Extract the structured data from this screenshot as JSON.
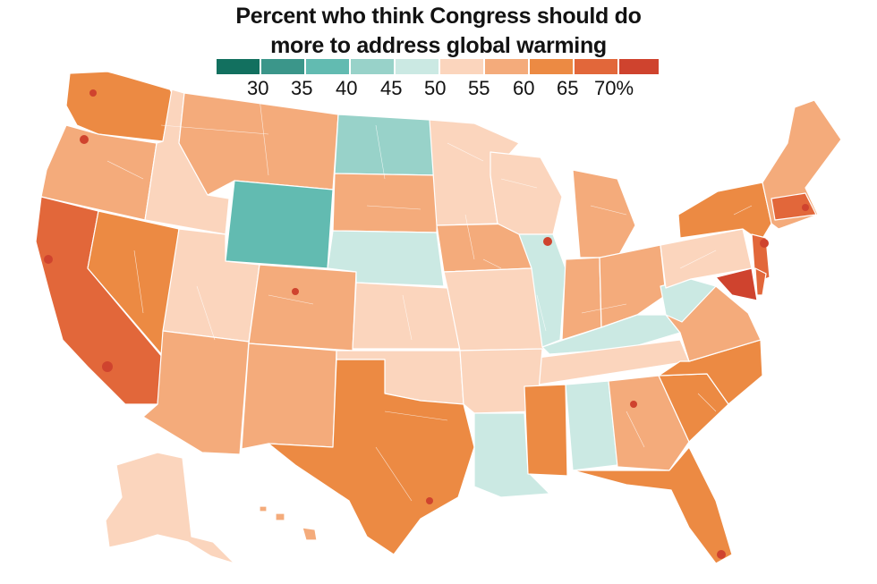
{
  "title": {
    "line1": "Percent who think Congress should do",
    "line2": "more to address global warming"
  },
  "legend": {
    "colors": [
      "#12705f",
      "#3b968a",
      "#62bbb1",
      "#98d2c9",
      "#cbe9e3",
      "#fbd5bd",
      "#f4ab7b",
      "#ec8a43",
      "#e2673a",
      "#cf432e"
    ],
    "ticks": [
      "30",
      "35",
      "40",
      "45",
      "50",
      "55",
      "60",
      "65",
      "70%"
    ]
  },
  "map_colors": {
    "light_peach": "#fbd5bd",
    "light_orange": "#f4ab7b",
    "orange": "#ec8a43",
    "dark_orange": "#e2673a",
    "red": "#cf432e",
    "light_teal": "#cbe9e3",
    "teal": "#98d2c9",
    "mid_teal": "#62bbb1"
  }
}
